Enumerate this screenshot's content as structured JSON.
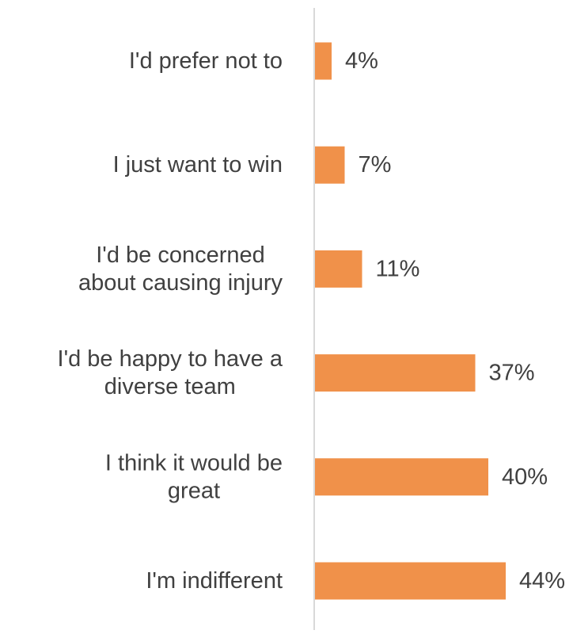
{
  "chart_data": {
    "type": "bar",
    "orientation": "horizontal",
    "categories": [
      "I'd prefer not to",
      "I just want to win",
      "I'd be concerned about causing injury",
      "I'd be happy to have a diverse team",
      "I think it would be great",
      "I'm indifferent"
    ],
    "category_lines": [
      [
        "I'd prefer not to"
      ],
      [
        "I just want to win"
      ],
      [
        "I'd be concerned",
        "about causing injury"
      ],
      [
        "I'd be happy to have a",
        "diverse team"
      ],
      [
        "I think it would be",
        "great"
      ],
      [
        "I'm indifferent"
      ]
    ],
    "values": [
      4,
      7,
      11,
      37,
      40,
      44
    ],
    "data_labels": [
      "4%",
      "7%",
      "11%",
      "37%",
      "40%",
      "44%"
    ],
    "unit": "%",
    "xlim": [
      0,
      50
    ],
    "title": "",
    "xlabel": "",
    "ylabel": "",
    "grid": false,
    "legend": "none",
    "bar_color": "#f0914a",
    "axis_color": "#d9d9d9",
    "text_color": "#404040"
  }
}
